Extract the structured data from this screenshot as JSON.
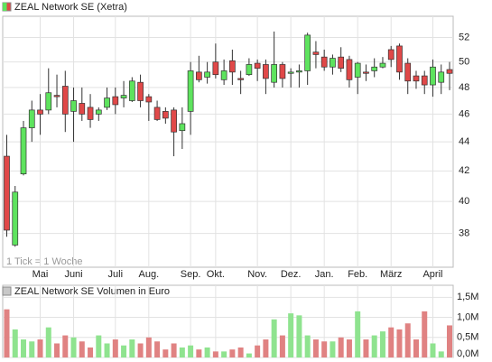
{
  "chart_data": [
    {
      "type": "candlestick",
      "title": "ZEAL Network SE (Xetra)",
      "annotation": "1 Tick = 1 Woche",
      "categories": [
        null,
        null,
        null,
        null,
        "Mai",
        null,
        null,
        null,
        "Juni",
        null,
        null,
        null,
        null,
        "Juli",
        null,
        null,
        null,
        "Aug.",
        null,
        null,
        null,
        null,
        "Sep.",
        null,
        null,
        "Okt.",
        null,
        null,
        null,
        null,
        "Nov.",
        null,
        null,
        null,
        "Dez.",
        null,
        null,
        null,
        "Jan.",
        null,
        null,
        null,
        "Feb.",
        null,
        null,
        null,
        "März",
        null,
        null,
        null,
        null,
        "April",
        null,
        null
      ],
      "open": [
        43,
        37.3,
        41.8,
        45,
        46.3,
        46.3,
        47.4,
        48.1,
        46.2,
        46.8,
        46.5,
        46,
        46.5,
        47.3,
        47.2,
        47,
        48.4,
        47.3,
        46.5,
        46.2,
        46.3,
        44.8,
        46.2,
        49.2,
        48.8,
        50,
        48.6,
        50.1,
        48.7,
        49,
        49.9,
        49.8,
        48.4,
        49.8,
        49.1,
        49.2,
        49.3,
        50.8,
        50.4,
        49.6,
        50.4,
        50.2,
        48.8,
        49.2,
        49.3,
        49.6,
        51,
        51.3,
        49.9,
        48.9,
        48.9,
        48.2,
        48.4,
        49.4
      ],
      "high": [
        44.5,
        41,
        45.5,
        47,
        47.5,
        49.5,
        49,
        49.3,
        48,
        48,
        47.5,
        46.5,
        48,
        48,
        48.5,
        48.8,
        49,
        47.5,
        47,
        46.5,
        46.5,
        46.5,
        50,
        50.5,
        50,
        51.5,
        50.2,
        51,
        49.3,
        50.3,
        50.2,
        50.2,
        52.5,
        50,
        49.5,
        49.8,
        52.4,
        51.7,
        51,
        50.6,
        51.2,
        50.5,
        50,
        49.8,
        50.3,
        50.4,
        51.3,
        51.5,
        50.3,
        49.3,
        49.3,
        50.2,
        49.8,
        50
      ],
      "low": [
        37.8,
        37.2,
        41.7,
        44,
        44.5,
        46,
        46.5,
        44.7,
        44,
        45.5,
        45,
        45.5,
        46.3,
        46,
        46.5,
        46.9,
        46.5,
        45.5,
        45.5,
        45.3,
        43,
        43.5,
        44.5,
        48.4,
        48.3,
        48.7,
        48.2,
        48.2,
        47.5,
        48.9,
        48.5,
        47.5,
        48,
        48,
        48,
        48,
        48.2,
        49.5,
        49.3,
        49,
        49.2,
        48,
        47.5,
        48.5,
        48.8,
        49.5,
        49.6,
        48.6,
        47.5,
        47.9,
        47.5,
        47.3,
        47.5,
        47.8
      ],
      "close": [
        38.2,
        40.6,
        45,
        46.3,
        46,
        47.6,
        47.3,
        46,
        47,
        46,
        45.6,
        46.3,
        47.2,
        46.7,
        47.4,
        48.5,
        47,
        46.9,
        45.6,
        45.7,
        44.7,
        45.3,
        49.3,
        48.6,
        49.2,
        49,
        49.3,
        49.2,
        48.6,
        49.8,
        49.5,
        48.7,
        49.8,
        48.7,
        49.2,
        49.3,
        52.2,
        50.6,
        49.6,
        50.3,
        49.5,
        48.6,
        49.9,
        49.1,
        49.6,
        49.9,
        50.2,
        49.2,
        48.5,
        48.5,
        48.2,
        49.6,
        49.2,
        49.1
      ],
      "up_color": "#5ee35e",
      "down_color": "#e04848",
      "log_scale": true,
      "grid": true,
      "ylim": [
        36,
        53.8
      ],
      "yticks": [
        38,
        40,
        42,
        44,
        46,
        48,
        50,
        52
      ]
    },
    {
      "type": "bar",
      "title": "ZEAL Network SE Volumen in Euro",
      "values": [
        1200000,
        700000,
        450000,
        400000,
        450000,
        750000,
        350000,
        550000,
        500000,
        400000,
        250000,
        550000,
        350000,
        450000,
        300000,
        450000,
        350000,
        500000,
        400000,
        200000,
        350000,
        250000,
        300000,
        200000,
        250000,
        150000,
        150000,
        200000,
        250000,
        100000,
        300000,
        450000,
        950000,
        550000,
        1100000,
        1050000,
        550000,
        450000,
        400000,
        400000,
        500000,
        450000,
        1150000,
        450000,
        550000,
        650000,
        750000,
        700000,
        850000,
        450000,
        1150000,
        350000,
        150000,
        800000
      ],
      "up_color": "#8fe38f",
      "down_color": "#e08282",
      "grid": true,
      "ylim": [
        0,
        1800000
      ],
      "yticks": [
        {
          "value": 0,
          "label": "0,0M"
        },
        {
          "value": 500000,
          "label": "0,5M"
        },
        {
          "value": 1000000,
          "label": "1,0M"
        },
        {
          "value": 1500000,
          "label": "1,5M"
        }
      ]
    }
  ]
}
